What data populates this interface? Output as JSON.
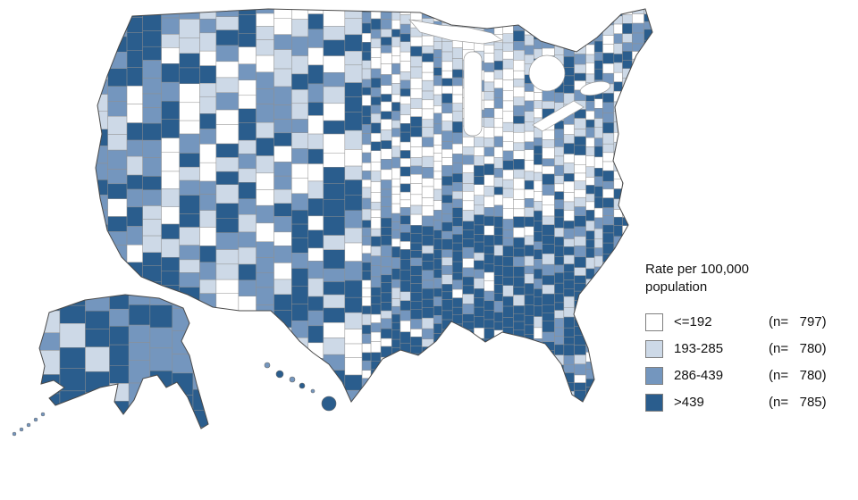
{
  "figure": {
    "type": "choropleth-map",
    "region": "United States counties with Alaska and Hawaii"
  },
  "legend": {
    "title_line1": "Rate per 100,000",
    "title_line2": "population",
    "categories": [
      {
        "label": "<=192",
        "n": 797,
        "count_text": "(n=   797)",
        "color": "#ffffff"
      },
      {
        "label": "193-285",
        "n": 780,
        "count_text": "(n=   780)",
        "color": "#cdd9e7"
      },
      {
        "label": "286-439",
        "n": 780,
        "count_text": "(n=   780)",
        "color": "#7496be"
      },
      {
        "label": ">439",
        "n": 785,
        "count_text": "(n=   785)",
        "color": "#2a5d8d"
      }
    ]
  },
  "chart_data": {
    "type": "heatmap",
    "subtype": "choropleth",
    "title": "Rate per 100,000 population",
    "geography": "US counties",
    "categories": [
      "<=192",
      "193-285",
      "286-439",
      ">439"
    ],
    "county_counts": [
      797,
      780,
      780,
      785
    ],
    "colors": [
      "#ffffff",
      "#cdd9e7",
      "#7496be",
      "#2a5d8d"
    ],
    "legend_position": "right"
  }
}
